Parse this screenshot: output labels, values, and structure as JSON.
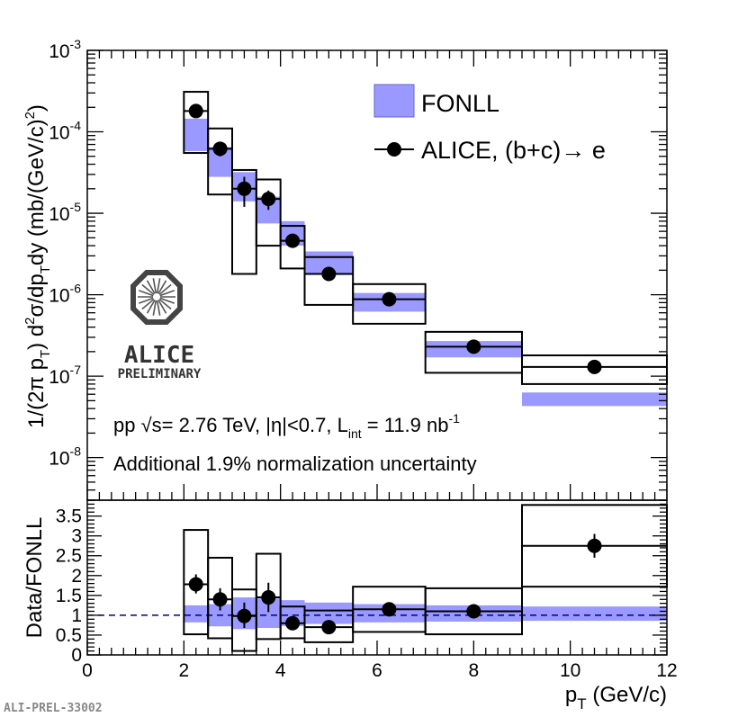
{
  "chart_data": [
    {
      "type": "scatter",
      "panel": "top",
      "yscale": "log",
      "xlim": [
        0,
        12
      ],
      "ylim": [
        3e-09,
        0.001
      ],
      "ylabel": "1/(2π pT) d²σ/dpTdy (mb/(GeV/c)²)",
      "ylabel_parts": {
        "p1": "1/(2π p",
        "s1": "T",
        "p2": ") d",
        "sup1": "2",
        "p3": "σ/dp",
        "s2": "T",
        "p4": "dy (mb/(GeV/c)",
        "sup2": "2",
        "p5": ")"
      },
      "ytick_labels": [
        {
          "value": 1e-08,
          "base": "10",
          "exp": "-8"
        },
        {
          "value": 1e-07,
          "base": "10",
          "exp": "-7"
        },
        {
          "value": 1e-06,
          "base": "10",
          "exp": "-6"
        },
        {
          "value": 1e-05,
          "base": "10",
          "exp": "-5"
        },
        {
          "value": 0.0001,
          "base": "10",
          "exp": "-4"
        },
        {
          "value": 0.001,
          "base": "10",
          "exp": "-3"
        }
      ],
      "series": [
        {
          "name": "FONLL",
          "style": "band",
          "color": "#9999ff",
          "bins": [
            {
              "x_lo": 2.0,
              "x_hi": 2.5,
              "y_lo": 5.8e-05,
              "y_hi": 0.000145
            },
            {
              "x_lo": 2.5,
              "x_hi": 3.0,
              "y_lo": 2.8e-05,
              "y_hi": 6.5e-05
            },
            {
              "x_lo": 3.0,
              "x_hi": 3.5,
              "y_lo": 1.4e-05,
              "y_hi": 3.2e-05
            },
            {
              "x_lo": 3.5,
              "x_hi": 4.0,
              "y_lo": 7.5e-06,
              "y_hi": 1.6e-05
            },
            {
              "x_lo": 4.0,
              "x_hi": 4.5,
              "y_lo": 4e-06,
              "y_hi": 8e-06
            },
            {
              "x_lo": 4.5,
              "x_hi": 5.5,
              "y_lo": 1.8e-06,
              "y_hi": 3.4e-06
            },
            {
              "x_lo": 5.5,
              "x_hi": 7.0,
              "y_lo": 6.2e-07,
              "y_hi": 1.05e-06
            },
            {
              "x_lo": 7.0,
              "x_hi": 9.0,
              "y_lo": 1.7e-07,
              "y_hi": 2.7e-07
            },
            {
              "x_lo": 9.0,
              "x_hi": 12.0,
              "y_lo": 4.3e-08,
              "y_hi": 6.3e-08
            }
          ]
        },
        {
          "name": "ALICE, (b+c)→ e",
          "style": "points",
          "color": "#000000",
          "points": [
            {
              "x": 2.25,
              "x_lo": 2.0,
              "x_hi": 2.5,
              "y": 0.00018,
              "stat_lo": 0.00015,
              "stat_hi": 0.00021,
              "sys_lo": 5.5e-05,
              "sys_hi": 0.00031
            },
            {
              "x": 2.75,
              "x_lo": 2.5,
              "x_hi": 3.0,
              "y": 6.2e-05,
              "stat_lo": 5e-05,
              "stat_hi": 7.4e-05,
              "sys_lo": 1.7e-05,
              "sys_hi": 0.00011
            },
            {
              "x": 3.25,
              "x_lo": 3.0,
              "x_hi": 3.5,
              "y": 2e-05,
              "stat_lo": 1.2e-05,
              "stat_hi": 2.8e-05,
              "sys_lo": 1.8e-06,
              "sys_hi": 3.4e-05
            },
            {
              "x": 3.75,
              "x_lo": 3.5,
              "x_hi": 4.0,
              "y": 1.5e-05,
              "stat_lo": 1.1e-05,
              "stat_hi": 1.9e-05,
              "sys_lo": 4e-06,
              "sys_hi": 2.6e-05
            },
            {
              "x": 4.25,
              "x_lo": 4.0,
              "x_hi": 4.5,
              "y": 4.6e-06,
              "stat_lo": 3.9e-06,
              "stat_hi": 5.3e-06,
              "sys_lo": 2.1e-06,
              "sys_hi": 7e-06
            },
            {
              "x": 5.0,
              "x_lo": 4.5,
              "x_hi": 5.5,
              "y": 1.8e-06,
              "stat_lo": 1.55e-06,
              "stat_hi": 2.05e-06,
              "sys_lo": 7.5e-07,
              "sys_hi": 2.9e-06
            },
            {
              "x": 6.25,
              "x_lo": 5.5,
              "x_hi": 7.0,
              "y": 8.8e-07,
              "stat_lo": 7.8e-07,
              "stat_hi": 9.8e-07,
              "sys_lo": 4.4e-07,
              "sys_hi": 1.35e-06
            },
            {
              "x": 8.0,
              "x_lo": 7.0,
              "x_hi": 9.0,
              "y": 2.3e-07,
              "stat_lo": 2e-07,
              "stat_hi": 2.6e-07,
              "sys_lo": 1.1e-07,
              "sys_hi": 3.5e-07
            },
            {
              "x": 10.5,
              "x_lo": 9.0,
              "x_hi": 12.0,
              "y": 1.3e-07,
              "stat_lo": 1.18e-07,
              "stat_hi": 1.42e-07,
              "sys_lo": 8e-08,
              "sys_hi": 1.8e-07
            }
          ]
        }
      ],
      "legend": {
        "position": "top-right",
        "entries": [
          {
            "label": "FONLL",
            "marker": "band"
          },
          {
            "label_main": "ALICE, (b+c)",
            "label_arrow": "→",
            "label_tail": " e",
            "marker": "point"
          }
        ]
      },
      "annotations": {
        "line1": {
          "a": "pp ",
          "sqrt": "√",
          "b": "s= 2.76 TeV, |η|<0.7, L",
          "sub": "int",
          "c": " = 11.9 nb",
          "sup": "-1"
        },
        "line2": "Additional 1.9% normalization uncertainty"
      },
      "logo": {
        "name": "ALICE",
        "subtitle": "PRELIMINARY"
      }
    },
    {
      "type": "scatter",
      "panel": "bottom",
      "xlim": [
        0,
        12
      ],
      "ylim": [
        0,
        3.9
      ],
      "xlabel": "pT (GeV/c)",
      "xlabel_parts": {
        "p": "p",
        "s": "T",
        "rest": " (GeV/c)"
      },
      "ylabel": "Data/FONLL",
      "xtick_labels": [
        "0",
        "2",
        "4",
        "6",
        "8",
        "10",
        "12"
      ],
      "xtick_values": [
        0,
        2,
        4,
        6,
        8,
        10,
        12
      ],
      "ytick_labels": [
        "0",
        "0.5",
        "1",
        "1.5",
        "2",
        "2.5",
        "3",
        "3.5"
      ],
      "ytick_values": [
        0,
        0.5,
        1,
        1.5,
        2,
        2.5,
        3,
        3.5
      ],
      "reference_line": {
        "y": 1,
        "style": "dashed",
        "color": "#000080"
      },
      "series": [
        {
          "name": "FONLL uncertainty",
          "style": "band",
          "color": "#9999ff",
          "bins": [
            {
              "x_lo": 2.0,
              "x_hi": 2.5,
              "y_lo": 0.82,
              "y_hi": 1.25
            },
            {
              "x_lo": 2.5,
              "x_hi": 3.0,
              "y_lo": 0.72,
              "y_hi": 1.28
            },
            {
              "x_lo": 3.0,
              "x_hi": 3.5,
              "y_lo": 0.65,
              "y_hi": 1.45
            },
            {
              "x_lo": 3.5,
              "x_hi": 4.0,
              "y_lo": 0.68,
              "y_hi": 1.42
            },
            {
              "x_lo": 4.0,
              "x_hi": 4.5,
              "y_lo": 0.73,
              "y_hi": 1.38
            },
            {
              "x_lo": 4.5,
              "x_hi": 5.5,
              "y_lo": 0.78,
              "y_hi": 1.32
            },
            {
              "x_lo": 5.5,
              "x_hi": 7.0,
              "y_lo": 0.82,
              "y_hi": 1.28
            },
            {
              "x_lo": 7.0,
              "x_hi": 9.0,
              "y_lo": 0.84,
              "y_hi": 1.25
            },
            {
              "x_lo": 9.0,
              "x_hi": 12.0,
              "y_lo": 0.86,
              "y_hi": 1.22
            }
          ]
        },
        {
          "name": "Data/FONLL",
          "style": "points",
          "color": "#000000",
          "points": [
            {
              "x": 2.25,
              "x_lo": 2.0,
              "x_hi": 2.5,
              "y": 1.78,
              "stat_lo": 1.55,
              "stat_hi": 2.03,
              "sys_lo": 0.52,
              "sys_hi": 3.15
            },
            {
              "x": 2.75,
              "x_lo": 2.5,
              "x_hi": 3.0,
              "y": 1.4,
              "stat_lo": 1.12,
              "stat_hi": 1.68,
              "sys_lo": 0.42,
              "sys_hi": 2.45
            },
            {
              "x": 3.25,
              "x_lo": 3.0,
              "x_hi": 3.5,
              "y": 0.98,
              "stat_lo": 0.68,
              "stat_hi": 1.32,
              "sys_lo": 0.1,
              "sys_hi": 1.65
            },
            {
              "x": 3.75,
              "x_lo": 3.5,
              "x_hi": 4.0,
              "y": 1.45,
              "stat_lo": 1.08,
              "stat_hi": 1.82,
              "sys_lo": 0.4,
              "sys_hi": 2.55
            },
            {
              "x": 4.25,
              "x_lo": 4.0,
              "x_hi": 4.5,
              "y": 0.8,
              "stat_lo": 0.68,
              "stat_hi": 0.92,
              "sys_lo": 0.42,
              "sys_hi": 1.22
            },
            {
              "x": 5.0,
              "x_lo": 4.5,
              "x_hi": 5.5,
              "y": 0.7,
              "stat_lo": 0.62,
              "stat_hi": 0.78,
              "sys_lo": 0.32,
              "sys_hi": 1.12
            },
            {
              "x": 6.25,
              "x_lo": 5.5,
              "x_hi": 7.0,
              "y": 1.15,
              "stat_lo": 1.02,
              "stat_hi": 1.28,
              "sys_lo": 0.58,
              "sys_hi": 1.72
            },
            {
              "x": 8.0,
              "x_lo": 7.0,
              "x_hi": 9.0,
              "y": 1.1,
              "stat_lo": 0.98,
              "stat_hi": 1.22,
              "sys_lo": 0.52,
              "sys_hi": 1.68
            },
            {
              "x": 10.5,
              "x_lo": 9.0,
              "x_hi": 12.0,
              "y": 2.75,
              "stat_lo": 2.45,
              "stat_hi": 3.05,
              "sys_lo": 1.72,
              "sys_hi": 3.78
            }
          ]
        }
      ]
    }
  ],
  "figure_tag": "ALI-PREL-33002",
  "colors": {
    "band": "#9999ff",
    "ref_line": "#000080",
    "ink": "#000000"
  }
}
